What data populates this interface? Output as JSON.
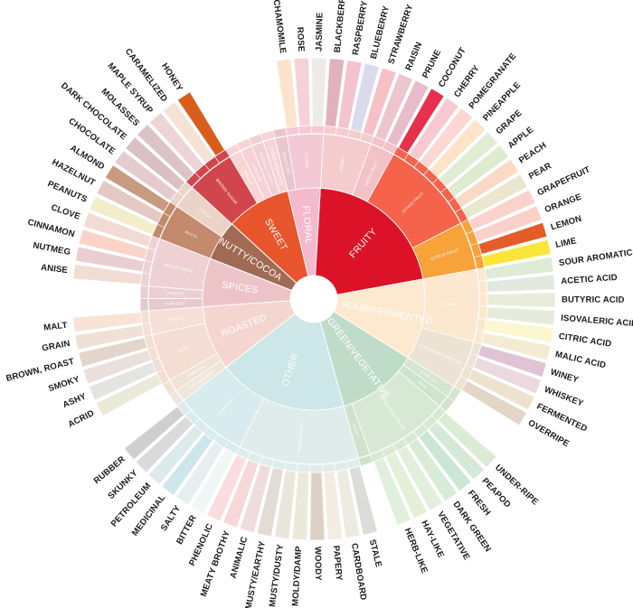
{
  "title": "",
  "wheel": {
    "categories": [
      {
        "label": "FRUITY",
        "color": "#dc1328",
        "tone": "#f3c8ca",
        "groups": [
          {
            "label": "BERRY",
            "color": "#f5cccd",
            "leaves": [
              {
                "label": "BLACKBERRY",
                "color": "#e2b2bc"
              },
              {
                "label": "RASPBERRY",
                "color": "#f4c3cf"
              },
              {
                "label": "BLUEBERRY",
                "color": "#dadaeb"
              },
              {
                "label": "STRAWBERRY",
                "color": "#f7c0c6"
              }
            ]
          },
          {
            "label": "DRIED FRUIT",
            "color": "#f2c2c6",
            "leaves": [
              {
                "label": "RAISIN",
                "color": "#ecc6cc"
              },
              {
                "label": "PRUNE",
                "color": "#e7bccb"
              }
            ]
          },
          {
            "label": "OTHER FRUIT",
            "color": "#f5634a",
            "leaves": [
              {
                "label": "COCONUT",
                "color": "#e7304b"
              },
              {
                "label": "CHERRY",
                "color": "#f8c9d0"
              },
              {
                "label": "POMEGRANATE",
                "color": "#fcd7d4"
              },
              {
                "label": "PINEAPPLE",
                "color": "#fde3c7"
              },
              {
                "label": "GRAPE",
                "color": "#e1ecd5"
              },
              {
                "label": "APPLE",
                "color": "#ddebcf"
              },
              {
                "label": "PEACH",
                "color": "#fbd9c7"
              },
              {
                "label": "PEAR",
                "color": "#eae7cf"
              }
            ]
          },
          {
            "label": "CITRUS FRUIT",
            "color": "#f8a23a",
            "leaves": [
              {
                "label": "GRAPEFRUIT",
                "color": "#fbd2cb"
              },
              {
                "label": "ORANGE",
                "color": "#fbd0c8"
              },
              {
                "label": "LEMON",
                "color": "#e45d28"
              },
              {
                "label": "LIME",
                "color": "#fbe53a"
              }
            ]
          }
        ]
      },
      {
        "label": "SOUR/FERMENTED",
        "color": "#fde9cf",
        "tone": "#f6ead9",
        "groups": [
          {
            "label": "SOUR",
            "color": "#fbe8ce",
            "leaves": [
              {
                "label": "SOUR AROMATICS",
                "color": "#dfebd5"
              },
              {
                "label": "ACETIC ACID",
                "color": "#e3e9df"
              },
              {
                "label": "BUTYRIC ACID",
                "color": "#e8ecd8"
              },
              {
                "label": "ISOVALERIC ACID",
                "color": "#e5ecdc"
              },
              {
                "label": "CITRIC ACID",
                "color": "#fbf7ce"
              },
              {
                "label": "MALIC ACID",
                "color": "#f4ecd2"
              }
            ]
          },
          {
            "label": "ALCOHOL/FERMENTED",
            "color": "#ede3d4",
            "leaves": [
              {
                "label": "WINEY",
                "color": "#e1c4d3"
              },
              {
                "label": "WHISKEY",
                "color": "#ecd9e0"
              },
              {
                "label": "FERMENTED",
                "color": "#efe1cf"
              },
              {
                "label": "OVERRIPE",
                "color": "#e3d6c6"
              }
            ]
          }
        ]
      },
      {
        "label": "GREEN/VEGETATIVE",
        "color": "#bfdcc8",
        "tone": "#d7ead9",
        "groups": [
          {
            "label": "OLIVE OIL",
            "color": "#d4e5d2",
            "leaves": []
          },
          {
            "label": "RAW",
            "color": "#cfe3cd",
            "leaves": []
          },
          {
            "label": "GREEN/VEGETATIVE",
            "color": "#d7e9d4",
            "leaves": [
              {
                "label": "UNDER-RIPE",
                "color": "#dcebd3"
              },
              {
                "label": "PEAPOD",
                "color": "#d4e9d7"
              },
              {
                "label": "FRESH",
                "color": "#cae7d3"
              },
              {
                "label": "DARK GREEN",
                "color": "#d7ebd6"
              },
              {
                "label": "VEGETATIVE",
                "color": "#e3efdd"
              },
              {
                "label": "HAY-LIKE",
                "color": "#e4efd8"
              },
              {
                "label": "HERB-LIKE",
                "color": "#dff0dc"
              }
            ]
          },
          {
            "label": "BEANY",
            "color": "#cfe2cc",
            "leaves": []
          }
        ]
      },
      {
        "label": "OTHER",
        "color": "#cde6e8",
        "tone": "#e3efef",
        "groups": [
          {
            "label": "PAPERY/MUSTY",
            "color": "#e0eceb",
            "leaves": [
              {
                "label": "STALE",
                "color": "#dcdcd8"
              },
              {
                "label": "CARDBOARD",
                "color": "#eeebe0"
              },
              {
                "label": "PAPERY",
                "color": "#f2ede3"
              },
              {
                "label": "WOODY",
                "color": "#ddd0c6"
              },
              {
                "label": "MOLDY/DAMP",
                "color": "#ede8dc"
              },
              {
                "label": "MUSTY/DUSTY",
                "color": "#ebe6dc"
              },
              {
                "label": "MUSTY/EARTHY",
                "color": "#e2dcd4"
              },
              {
                "label": "ANIMALIC",
                "color": "#efdcdc"
              },
              {
                "label": "MEATY BROTHY",
                "color": "#f6d8d9"
              },
              {
                "label": "PHENOLIC",
                "color": "#f9dde0"
              }
            ]
          },
          {
            "label": "CHEMICAL",
            "color": "#d8ebee",
            "leaves": [
              {
                "label": "BITTER",
                "color": "#f1f7f7"
              },
              {
                "label": "SALTY",
                "color": "#e6eff0"
              },
              {
                "label": "MEDICINAL",
                "color": "#cce6ec"
              },
              {
                "label": "PETROLEUM",
                "color": "#ddeaec"
              },
              {
                "label": "SKUNKY",
                "color": "#dadada"
              },
              {
                "label": "RUBBER",
                "color": "#cfcfcf"
              }
            ]
          }
        ]
      },
      {
        "label": "ROASTED",
        "color": "#f5d5d0",
        "tone": "#f7e5df",
        "groups": [
          {
            "label": "PIPE TOBACCO",
            "color": "#f0e6da",
            "leaves": []
          },
          {
            "label": "TOBACCO",
            "color": "#efe3d6",
            "leaves": []
          },
          {
            "label": "BURNT",
            "color": "#f4ddd3",
            "leaves": [
              {
                "label": "ACRID",
                "color": "#ebe9d8"
              },
              {
                "label": "ASHY",
                "color": "#e4e5e2"
              },
              {
                "label": "SMOKY",
                "color": "#e9e0db"
              },
              {
                "label": "BROWN, ROAST",
                "color": "#e4d5cc"
              }
            ]
          },
          {
            "label": "CEREAL",
            "color": "#f4e0d6",
            "leaves": [
              {
                "label": "GRAIN",
                "color": "#efe1d6"
              },
              {
                "label": "MALT",
                "color": "#f8e3d6"
              }
            ]
          }
        ]
      },
      {
        "label": "SPICES",
        "color": "#ecc4c7",
        "tone": "#f2dcdc",
        "groups": [
          {
            "label": "PUNGENT",
            "color": "#e6c9cc",
            "leaves": []
          },
          {
            "label": "PEPPER",
            "color": "#ebcfd1",
            "leaves": []
          },
          {
            "label": "BROWN SPICE",
            "color": "#eed2d3",
            "leaves": [
              {
                "label": "ANISE",
                "color": "#f2ddd5"
              },
              {
                "label": "NUTMEG",
                "color": "#eacfd2"
              },
              {
                "label": "CINNAMON",
                "color": "#fbd3c8"
              },
              {
                "label": "CLOVE",
                "color": "#f2dbd5"
              }
            ]
          }
        ]
      },
      {
        "label": "NUTTY/COCOA",
        "color": "#a06a55",
        "tone": "#e7d2c8",
        "groups": [
          {
            "label": "NUTTY",
            "color": "#c48a6d",
            "leaves": [
              {
                "label": "PEANUTS",
                "color": "#f4edcc"
              },
              {
                "label": "HAZELNUT",
                "color": "#e3c8c3"
              },
              {
                "label": "ALMOND",
                "color": "#c89a7f"
              }
            ]
          },
          {
            "label": "COCOA",
            "color": "#ebd3c8",
            "leaves": [
              {
                "label": "CHOCOLATE",
                "color": "#e6cbcc"
              },
              {
                "label": "DARK CHOCOLATE",
                "color": "#d9c1c3"
              }
            ]
          }
        ]
      },
      {
        "label": "SWEET",
        "color": "#e9552c",
        "tone": "#f5d5cf",
        "groups": [
          {
            "label": "BROWN SUGAR",
            "color": "#d1464c",
            "leaves": [
              {
                "label": "MOLASSES",
                "color": "#dcc4c6"
              },
              {
                "label": "MAPLE SYRUP",
                "color": "#efd4d6"
              },
              {
                "label": "CARAMELIZED",
                "color": "#f6e1d6"
              },
              {
                "label": "HONEY",
                "color": "#d95e1c"
              }
            ]
          },
          {
            "label": "VANILLA",
            "color": "#f8d6d3",
            "leaves": []
          },
          {
            "label": "VANILLIN",
            "color": "#f6d2d6",
            "leaves": []
          },
          {
            "label": "OVERALL SWEET",
            "color": "#f3cfd3",
            "leaves": []
          },
          {
            "label": "SWEET AROMATICS",
            "color": "#f6d4d6",
            "leaves": []
          }
        ]
      },
      {
        "label": "FLORAL",
        "color": "#f5b9cd",
        "tone": "#f9d4de",
        "groups": [
          {
            "label": "BLACK TEA",
            "color": "#e9c5cd",
            "leaves": []
          },
          {
            "label": "FLORAL",
            "color": "#f4c9d6",
            "leaves": [
              {
                "label": "CHAMOMILE",
                "color": "#fce3cc"
              },
              {
                "label": "ROSE",
                "color": "#f7d1d8"
              },
              {
                "label": "JASMINE",
                "color": "#efeaea"
              }
            ]
          }
        ]
      }
    ]
  }
}
